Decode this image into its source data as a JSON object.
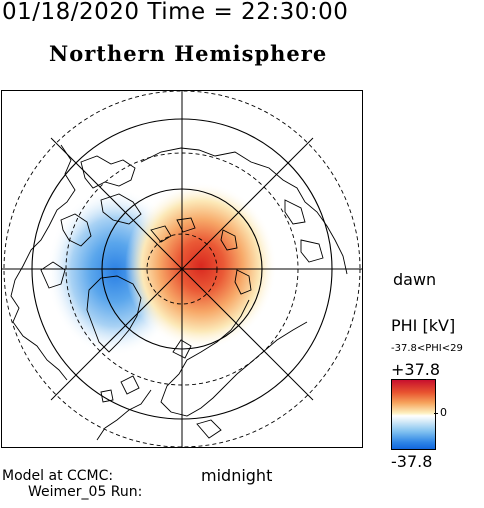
{
  "header": {
    "datetime": "01/18/2020 Time = 22:30:00",
    "hemisphere": "Northern Hemisphere"
  },
  "map": {
    "labels": {
      "dawn": "dawn",
      "midnight": "midnight"
    },
    "potential_pattern": {
      "positive_cell": "dawn side, red (+)",
      "negative_cell": "dusk side, blue (-)"
    },
    "colors": {
      "positive": "#d7191c",
      "negative": "#1a6fe0",
      "neutral": "#ffffff"
    }
  },
  "colorbar": {
    "title": "PHI [kV]",
    "range_text": "-37.8<PHI<29",
    "max_label": "+37.8",
    "mid_label": "0",
    "min_label": "-37.8",
    "max_value": 37.8,
    "min_value": -37.8
  },
  "footer": {
    "model_line1": "Model at CCMC:",
    "model_line2": "Weimer_05 Run:"
  }
}
